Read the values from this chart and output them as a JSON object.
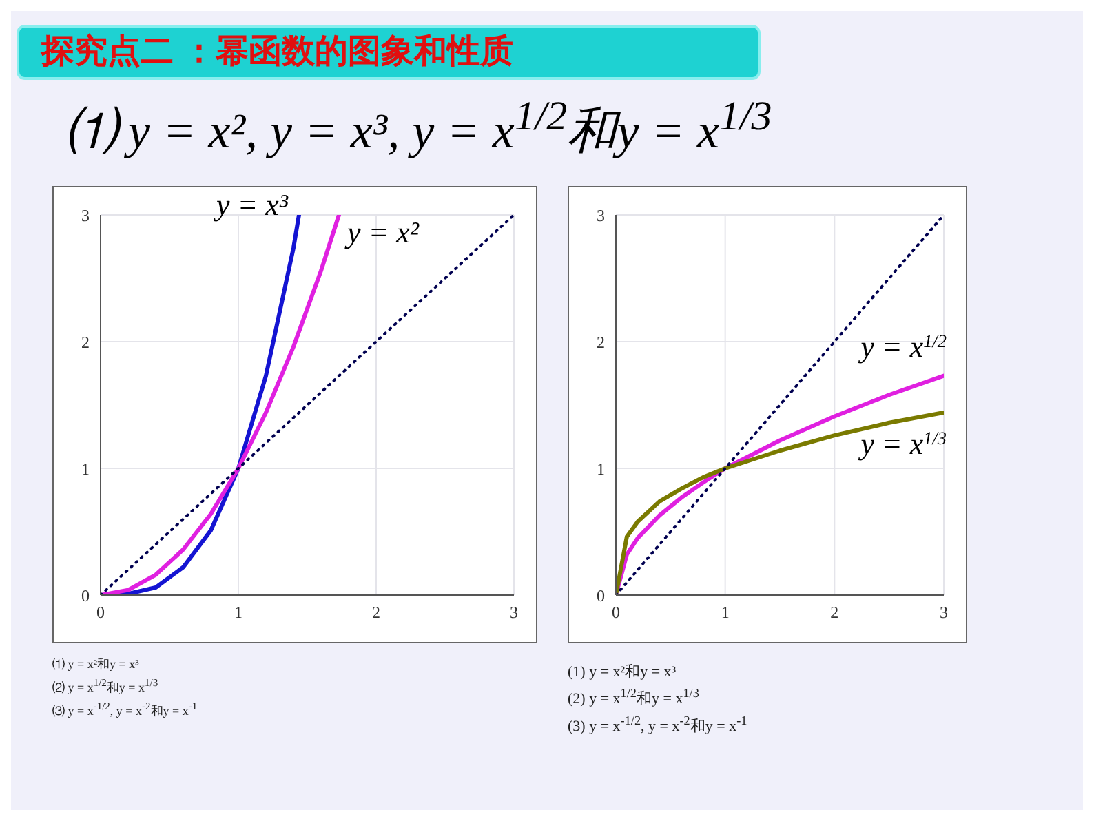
{
  "chart_data": [
    {
      "type": "line",
      "title": "探究点二 ：幂函数的图象和性质",
      "subtitle": "⑴ y = x², y = x³, y = x$^{1/2}$和y = x$^{1/3}$",
      "xlim": [
        0,
        3
      ],
      "ylim": [
        0,
        3
      ],
      "xticks": [
        0,
        1,
        2,
        3
      ],
      "yticks": [
        0,
        1,
        2,
        3
      ],
      "grid": true,
      "marker": "none",
      "legend": false,
      "series": [
        {
          "name": "y = x³",
          "color": "#1414d2",
          "x": [
            0,
            0.2,
            0.4,
            0.6,
            0.8,
            1,
            1.2,
            1.4,
            1.44
          ],
          "values": [
            0,
            0.01,
            0.06,
            0.22,
            0.51,
            1,
            1.73,
            2.74,
            3
          ]
        },
        {
          "name": "y = x²",
          "color": "#e020e0",
          "x": [
            0,
            0.2,
            0.4,
            0.6,
            0.8,
            1,
            1.2,
            1.4,
            1.6,
            1.73
          ],
          "values": [
            0,
            0.04,
            0.16,
            0.36,
            0.64,
            1,
            1.44,
            1.96,
            2.56,
            3
          ]
        },
        {
          "color": "#000050",
          "line_style": "dotted",
          "x": [
            0,
            3
          ],
          "values": [
            0,
            3
          ]
        }
      ],
      "annotations": [
        "⑴ y = x²和y = x³",
        "⑵ y = x$^{1/2}$和y = x$^{1/3}$",
        "⑶ y = x$^{-1/2}$, y = x$^{-2}$和y = x$^{-1}$"
      ]
    },
    {
      "type": "line",
      "xlim": [
        0,
        3
      ],
      "ylim": [
        0,
        3
      ],
      "xticks": [
        0,
        1,
        2,
        3
      ],
      "yticks": [
        0,
        1,
        2,
        3
      ],
      "grid": true,
      "marker": "none",
      "legend": false,
      "series": [
        {
          "name": "y = x$^{1/2}$",
          "color": "#e020e0",
          "x": [
            0,
            0.1,
            0.2,
            0.4,
            0.6,
            0.8,
            1,
            1.5,
            2,
            2.5,
            3
          ],
          "values": [
            0,
            0.32,
            0.45,
            0.63,
            0.77,
            0.89,
            1,
            1.22,
            1.41,
            1.58,
            1.73
          ]
        },
        {
          "name": "y = x$^{1/3}$",
          "color": "#7a7a00",
          "x": [
            0,
            0.1,
            0.2,
            0.4,
            0.6,
            0.8,
            1,
            1.5,
            2,
            2.5,
            3
          ],
          "values": [
            0,
            0.46,
            0.58,
            0.74,
            0.84,
            0.93,
            1,
            1.14,
            1.26,
            1.36,
            1.44
          ]
        },
        {
          "color": "#000050",
          "line_style": "dotted",
          "x": [
            0,
            3
          ],
          "values": [
            0,
            3
          ]
        }
      ],
      "annotations": [
        "(1) y = x²和y = x³",
        "(2) y = x$^{1/2}$和y = x$^{1/3}$",
        "(3) y = x$^{-1/2}$, y = x$^{-2}$和y = x$^{-1}$"
      ]
    }
  ]
}
